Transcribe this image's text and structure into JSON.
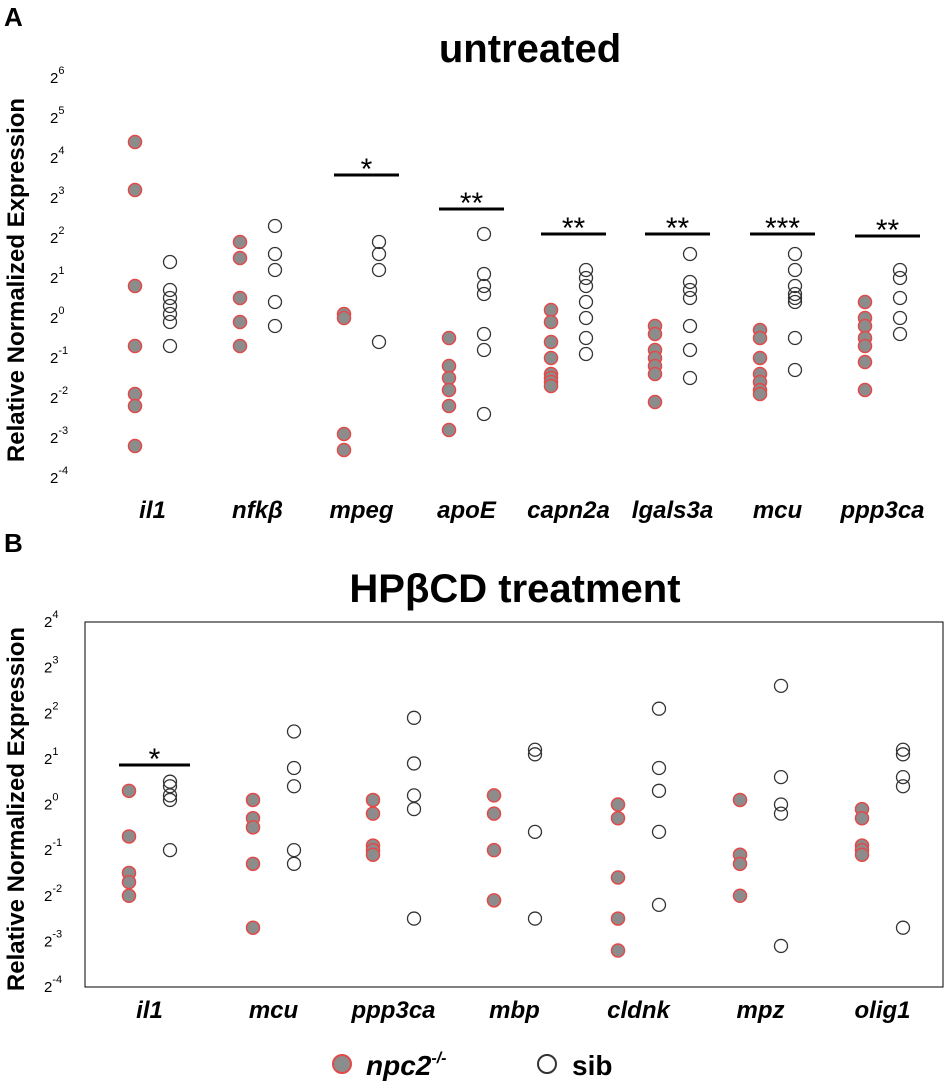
{
  "chart_data": [
    {
      "type": "scatter",
      "panel_label": "A",
      "title": "untreated",
      "ylabel": "Relative Normalized Expression",
      "yscale": "log2",
      "ylim_exp": [
        -4,
        6
      ],
      "y_ticks": [
        {
          "base": "2",
          "exp": "-4",
          "value": -4
        },
        {
          "base": "2",
          "exp": "-3",
          "value": -3
        },
        {
          "base": "2",
          "exp": "-2",
          "value": -2
        },
        {
          "base": "2",
          "exp": "-1",
          "value": -1
        },
        {
          "base": "2",
          "exp": "0",
          "value": 0
        },
        {
          "base": "2",
          "exp": "1",
          "value": 1
        },
        {
          "base": "2",
          "exp": "2",
          "value": 2
        },
        {
          "base": "2",
          "exp": "3",
          "value": 3
        },
        {
          "base": "2",
          "exp": "4",
          "value": 4
        },
        {
          "base": "2",
          "exp": "5",
          "value": 5
        },
        {
          "base": "2",
          "exp": "6",
          "value": 6
        }
      ],
      "categories": [
        "il1",
        "nfkβ",
        "mpeg",
        "apoE",
        "capn2a",
        "lgals3a",
        "mcu",
        "ppp3ca"
      ],
      "series": [
        {
          "name": "npc2-/-",
          "values": [
            [
              4.4,
              3.2,
              0.8,
              -0.7,
              -1.9,
              -2.2,
              -3.2
            ],
            [
              1.9,
              1.5,
              0.5,
              -0.1,
              -0.7
            ],
            [
              0.1,
              0.0,
              -2.9,
              -3.3
            ],
            [
              -0.5,
              -1.2,
              -1.5,
              -1.8,
              -2.2,
              -2.8
            ],
            [
              0.2,
              -0.1,
              -0.6,
              -1.0,
              -1.4,
              -1.5,
              -1.6,
              -1.7
            ],
            [
              -0.2,
              -0.4,
              -0.8,
              -1.0,
              -1.2,
              -1.4,
              -2.1
            ],
            [
              -0.3,
              -0.5,
              -1.0,
              -1.4,
              -1.6,
              -1.8,
              -1.9
            ],
            [
              0.4,
              0.0,
              -0.2,
              -0.5,
              -0.7,
              -1.1,
              -1.8
            ]
          ]
        },
        {
          "name": "sib",
          "values": [
            [
              1.4,
              0.7,
              0.5,
              0.3,
              0.1,
              -0.1,
              -0.7
            ],
            [
              2.3,
              1.6,
              1.2,
              0.4,
              -0.2
            ],
            [
              1.9,
              1.6,
              1.2,
              -0.6
            ],
            [
              2.1,
              1.1,
              0.8,
              0.6,
              -0.4,
              -0.8,
              -2.4
            ],
            [
              1.2,
              1.0,
              0.8,
              0.4,
              0.0,
              -0.5,
              -0.9
            ],
            [
              1.6,
              0.9,
              0.7,
              0.5,
              -0.2,
              -0.8,
              -1.5
            ],
            [
              1.6,
              1.2,
              0.8,
              0.6,
              0.5,
              0.4,
              -0.5,
              -1.3
            ],
            [
              1.2,
              1.0,
              0.5,
              0.0,
              -0.4
            ]
          ]
        }
      ],
      "significance": [
        "",
        "",
        "*",
        "**",
        "**",
        "**",
        "***",
        "**"
      ]
    },
    {
      "type": "scatter",
      "panel_label": "B",
      "title": "HPβCD treatment",
      "ylabel": "Relative Normalized Expression",
      "yscale": "log2",
      "ylim_exp": [
        -4,
        4
      ],
      "y_ticks": [
        {
          "base": "2",
          "exp": "-4",
          "value": -4
        },
        {
          "base": "2",
          "exp": "-3",
          "value": -3
        },
        {
          "base": "2",
          "exp": "-2",
          "value": -2
        },
        {
          "base": "2",
          "exp": "-1",
          "value": -1
        },
        {
          "base": "2",
          "exp": "0",
          "value": 0
        },
        {
          "base": "2",
          "exp": "1",
          "value": 1
        },
        {
          "base": "2",
          "exp": "2",
          "value": 2
        },
        {
          "base": "2",
          "exp": "3",
          "value": 3
        },
        {
          "base": "2",
          "exp": "4",
          "value": 4
        }
      ],
      "categories": [
        "il1",
        "mcu",
        "ppp3ca",
        "mbp",
        "cldnk",
        "mpz",
        "olig1"
      ],
      "series": [
        {
          "name": "npc2-/-",
          "values": [
            [
              0.3,
              -0.7,
              -1.5,
              -1.7,
              -2.0
            ],
            [
              0.1,
              -0.3,
              -0.5,
              -1.3,
              -2.7
            ],
            [
              0.1,
              -0.2,
              -0.9,
              -1.0,
              -1.1
            ],
            [
              0.2,
              -0.2,
              -1.0,
              -2.1
            ],
            [
              0.0,
              -0.3,
              -1.6,
              -2.5,
              -3.2
            ],
            [
              0.1,
              -1.1,
              -1.3,
              -2.0
            ],
            [
              -0.1,
              -0.3,
              -0.9,
              -1.0,
              -1.1
            ]
          ]
        },
        {
          "name": "sib",
          "values": [
            [
              0.5,
              0.4,
              0.2,
              0.1,
              -1.0
            ],
            [
              1.6,
              0.8,
              0.4,
              -1.0,
              -1.3
            ],
            [
              1.9,
              0.9,
              0.2,
              -0.1,
              -2.5
            ],
            [
              1.2,
              1.1,
              -0.6,
              -2.5
            ],
            [
              2.1,
              0.8,
              0.3,
              -0.6,
              -2.2
            ],
            [
              2.6,
              0.6,
              0.0,
              -0.2,
              -3.1
            ],
            [
              1.2,
              1.1,
              0.6,
              0.4,
              -2.7
            ]
          ]
        }
      ],
      "significance": [
        "*",
        "",
        "",
        "",
        "",
        "",
        ""
      ]
    }
  ],
  "legend": {
    "mutant_label": "npc2",
    "mutant_superscript": "-/-",
    "sib_label": "sib",
    "colors": {
      "mutant_fill": "#8c8c8c",
      "mutant_edge": "#e24a4a",
      "sib_edge": "#333333"
    }
  }
}
